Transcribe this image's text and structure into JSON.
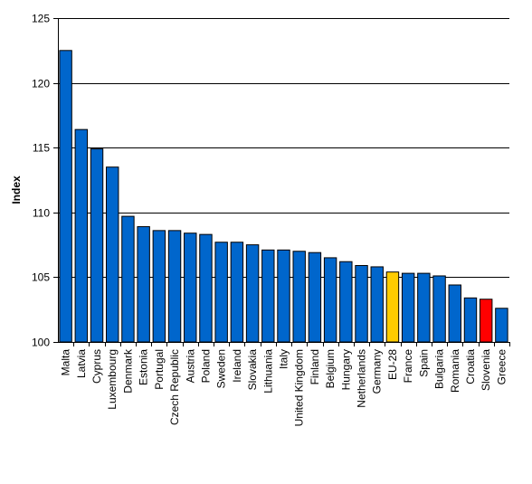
{
  "chart_data": {
    "type": "bar",
    "title": "",
    "xlabel": "",
    "ylabel": "Index",
    "ylim": [
      100,
      125
    ],
    "yticks": [
      100,
      105,
      110,
      115,
      120,
      125
    ],
    "grid": true,
    "legend": "none",
    "categories": [
      "Malta",
      "Latvia",
      "Cyprus",
      "Luxembourg",
      "Denmark",
      "Estonia",
      "Portugal",
      "Czech Republic",
      "Austria",
      "Poland",
      "Sweden",
      "Ireland",
      "Slovakia",
      "Lithuania",
      "Italy",
      "United Kingdom",
      "Finland",
      "Belgium",
      "Hungary",
      "Netherlands",
      "Germany",
      "EU-28",
      "France",
      "Spain",
      "Bulgaria",
      "Romania",
      "Croatia",
      "Slovenia",
      "Greece"
    ],
    "values": [
      122.5,
      116.4,
      114.9,
      113.5,
      109.7,
      108.9,
      108.6,
      108.6,
      108.4,
      108.3,
      107.7,
      107.7,
      107.5,
      107.1,
      107.1,
      107.0,
      106.9,
      106.5,
      106.2,
      105.9,
      105.8,
      105.4,
      105.3,
      105.3,
      105.1,
      104.4,
      103.4,
      103.3,
      102.6
    ],
    "colors": {
      "default": "#0066CC",
      "EU-28": "#FFCC00",
      "Slovenia": "#FF0000",
      "outline": "#000000",
      "grid": "#000000"
    }
  }
}
